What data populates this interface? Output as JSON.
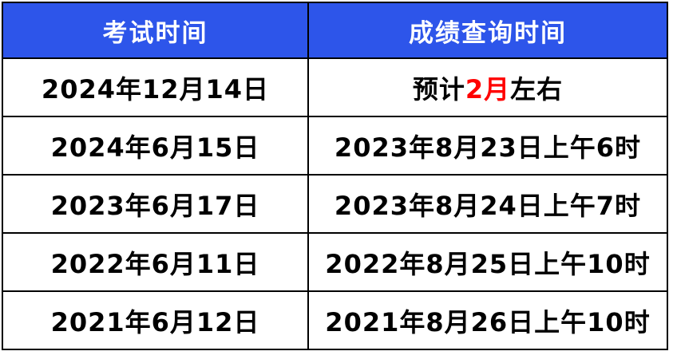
{
  "colors": {
    "header_bg": "#2d55ea",
    "header_text": "#ffffff",
    "body_text": "#000000",
    "border": "#000000",
    "red": "#ff0000"
  },
  "table": {
    "header": [
      "考试时间",
      "成绩查询时间"
    ],
    "rows": [
      {
        "cells": [
          [
            {
              "text": "2024年12月14日"
            }
          ],
          [
            {
              "text": "预计"
            },
            {
              "text": "2月",
              "color": "red"
            },
            {
              "text": "左右"
            }
          ]
        ]
      },
      {
        "cells": [
          [
            {
              "text": "2024年6月15日"
            }
          ],
          [
            {
              "text": "2023年8月23日上午6时"
            }
          ]
        ]
      },
      {
        "cells": [
          [
            {
              "text": "2023年6月17日"
            }
          ],
          [
            {
              "text": "2023年8月24日上午7时"
            }
          ]
        ]
      },
      {
        "cells": [
          [
            {
              "text": "2022年6月11日"
            }
          ],
          [
            {
              "text": "2022年8月25日上午10时"
            }
          ]
        ]
      },
      {
        "cells": [
          [
            {
              "text": "2021年6月12日"
            }
          ],
          [
            {
              "text": "2021年8月26日上午10时"
            }
          ]
        ]
      }
    ]
  },
  "chart_data": {
    "type": "table",
    "columns": [
      "考试时间",
      "成绩查询时间"
    ],
    "rows": [
      [
        "2024年12月14日",
        "预计2月左右"
      ],
      [
        "2024年6月15日",
        "2023年8月23日上午6时"
      ],
      [
        "2023年6月17日",
        "2023年8月24日上午7时"
      ],
      [
        "2022年6月11日",
        "2022年8月25日上午10时"
      ],
      [
        "2021年6月12日",
        "2021年8月26日上午10时"
      ]
    ],
    "highlight": {
      "row": 0,
      "column": 1,
      "text": "2月",
      "color": "#ff0000"
    },
    "layout": {
      "header_style": "blue-filled",
      "grid": "black 2px solid",
      "text_align": "center"
    }
  }
}
